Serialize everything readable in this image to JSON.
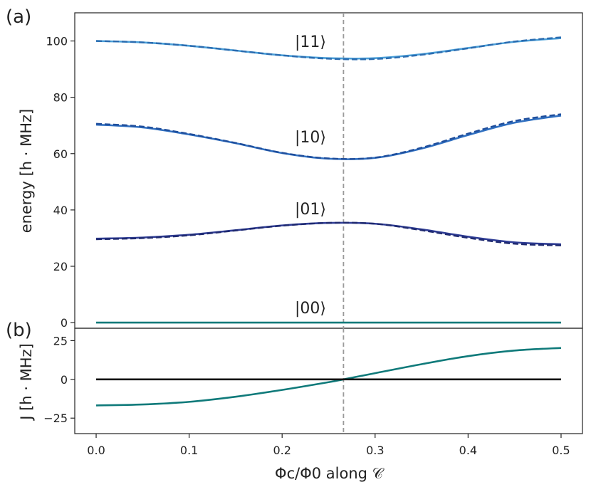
{
  "chart_data": [
    {
      "panel_label": "(a)",
      "type": "line",
      "ylabel": "energy [h · MHz]",
      "ylim": [
        -2,
        110
      ],
      "yticks": [
        0,
        20,
        40,
        60,
        80,
        100
      ],
      "xlim": [
        -0.023,
        0.523
      ],
      "vline_x": 0.266,
      "series": [
        {
          "name": "|11⟩",
          "color": "#4a9fd8",
          "style": "solid",
          "x": [
            0.0,
            0.05,
            0.1,
            0.15,
            0.2,
            0.25,
            0.3,
            0.35,
            0.4,
            0.45,
            0.5
          ],
          "values": [
            100.0,
            99.5,
            98.3,
            96.6,
            94.9,
            93.9,
            93.9,
            95.3,
            97.5,
            99.7,
            101.0
          ]
        },
        {
          "name": "|11⟩ (dashed)",
          "color": "#2b6cb0",
          "style": "dashed",
          "x": [
            0.0,
            0.05,
            0.1,
            0.15,
            0.2,
            0.25,
            0.3,
            0.35,
            0.4,
            0.45,
            0.5
          ],
          "values": [
            100.0,
            99.5,
            98.3,
            96.6,
            94.9,
            93.7,
            93.6,
            95.1,
            97.4,
            99.8,
            101.3
          ]
        },
        {
          "name": "|10⟩",
          "color": "#2f6fc0",
          "style": "solid",
          "x": [
            0.0,
            0.05,
            0.1,
            0.15,
            0.2,
            0.25,
            0.3,
            0.35,
            0.4,
            0.45,
            0.5
          ],
          "values": [
            70.3,
            69.3,
            66.8,
            63.7,
            60.2,
            58.2,
            58.5,
            61.8,
            66.6,
            71.0,
            73.5
          ]
        },
        {
          "name": "|10⟩ (dashed)",
          "color": "#1f4e9c",
          "style": "dashed",
          "x": [
            0.0,
            0.05,
            0.1,
            0.15,
            0.2,
            0.25,
            0.3,
            0.35,
            0.4,
            0.45,
            0.5
          ],
          "values": [
            70.6,
            69.6,
            67.0,
            63.8,
            60.3,
            58.3,
            58.6,
            62.1,
            67.1,
            71.6,
            74.0
          ]
        },
        {
          "name": "|01⟩",
          "color": "#2e3c95",
          "style": "solid",
          "x": [
            0.0,
            0.05,
            0.1,
            0.15,
            0.2,
            0.25,
            0.3,
            0.35,
            0.4,
            0.45,
            0.5
          ],
          "values": [
            29.8,
            30.2,
            31.2,
            32.8,
            34.5,
            35.4,
            35.1,
            33.1,
            30.5,
            28.5,
            27.8
          ]
        },
        {
          "name": "|01⟩ (dashed)",
          "color": "#1f2a70",
          "style": "dashed",
          "x": [
            0.0,
            0.05,
            0.1,
            0.15,
            0.2,
            0.25,
            0.3,
            0.35,
            0.4,
            0.45,
            0.5
          ],
          "values": [
            29.6,
            30.0,
            31.0,
            32.7,
            34.4,
            35.4,
            35.1,
            32.8,
            30.1,
            28.0,
            27.4
          ]
        },
        {
          "name": "|00⟩",
          "color": "#0f7a7a",
          "style": "solid",
          "x": [
            0.0,
            0.5
          ],
          "values": [
            0.0,
            0.0
          ]
        }
      ]
    },
    {
      "panel_label": "(b)",
      "type": "line",
      "xlabel": "Φc/Φ0 along 𝒞",
      "ylabel": "J [h · MHz]",
      "ylim": [
        -35,
        33
      ],
      "yticks": [
        -25,
        0,
        25
      ],
      "xlim": [
        -0.023,
        0.523
      ],
      "xticks": [
        0.0,
        0.1,
        0.2,
        0.3,
        0.4,
        0.5
      ],
      "vline_x": 0.266,
      "series": [
        {
          "name": "J",
          "color": "#0f7a7a",
          "style": "solid",
          "x": [
            0.0,
            0.05,
            0.1,
            0.15,
            0.2,
            0.25,
            0.266,
            0.3,
            0.35,
            0.4,
            0.45,
            0.5
          ],
          "values": [
            -16.8,
            -16.2,
            -14.5,
            -11.2,
            -6.8,
            -1.8,
            0.0,
            4.0,
            9.8,
            15.0,
            18.6,
            20.3
          ]
        },
        {
          "name": "zero",
          "color": "#111111",
          "style": "solid",
          "x": [
            0.0,
            0.5
          ],
          "values": [
            0.0,
            0.0
          ]
        }
      ]
    }
  ],
  "labels": {
    "panel_a": "(a)",
    "panel_b": "(b)",
    "state_11": "|11⟩",
    "state_10": "|10⟩",
    "state_01": "|01⟩",
    "state_00": "|00⟩",
    "ylabel_a": "energy [h · MHz]",
    "ylabel_b": "J [h · MHz]",
    "xlabel": "Φc/Φ0 along 𝒞"
  },
  "tick_labels": {
    "x": [
      "0.0",
      "0.1",
      "0.2",
      "0.3",
      "0.4",
      "0.5"
    ],
    "y_a": [
      "0",
      "20",
      "40",
      "60",
      "80",
      "100"
    ],
    "y_b": [
      "−25",
      "0",
      "25"
    ]
  }
}
